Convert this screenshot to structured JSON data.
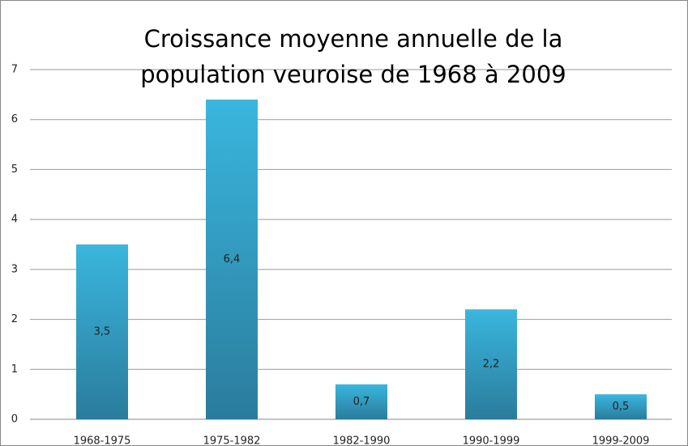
{
  "chart_data": {
    "type": "bar",
    "title": [
      "Croissance moyenne annuelle de la",
      "population veuroise de 1968 à 2009"
    ],
    "categories": [
      "1968-1975",
      "1975-1982",
      "1982-1990",
      "1990-1999",
      "1999-2009"
    ],
    "values": [
      3.5,
      6.4,
      0.7,
      2.2,
      0.5
    ],
    "value_labels": [
      "3,5",
      "6,4",
      "0,7",
      "2,2",
      "0,5"
    ],
    "color": "#31a3cc",
    "ylim": [
      0,
      7
    ],
    "yticks": [
      0,
      1,
      2,
      3,
      4,
      5,
      6,
      7
    ],
    "grid": true
  }
}
